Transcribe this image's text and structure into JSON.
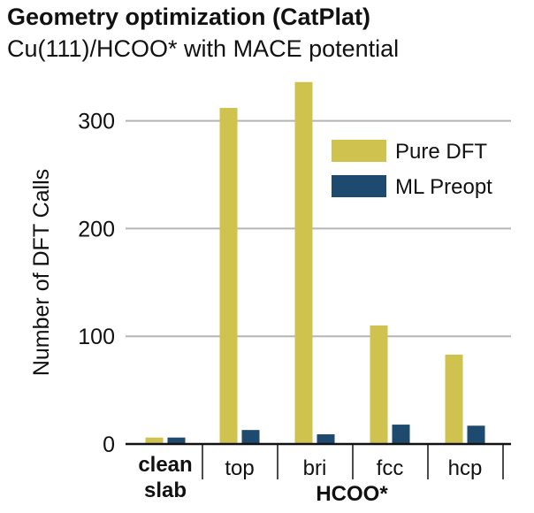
{
  "header": {
    "title": "Geometry optimization (CatPlat)",
    "subtitle": "Cu(111)/HCOO* with MACE potential"
  },
  "chart_data": {
    "type": "bar",
    "ylabel": "Number of DFT Calls",
    "ylim": [
      0,
      330
    ],
    "yticks": [
      0,
      100,
      200,
      300
    ],
    "grid": true,
    "legend_position": "top-right",
    "categories": [
      "clean slab",
      "top",
      "bri",
      "fcc",
      "hcp"
    ],
    "group_label": "HCOO*",
    "series": [
      {
        "name": "Pure DFT",
        "color": "#cfc24f",
        "values": [
          6,
          312,
          336,
          110,
          83
        ]
      },
      {
        "name": "ML Preopt",
        "color": "#1d4a6e",
        "values": [
          6,
          13,
          9,
          18,
          17
        ]
      }
    ]
  }
}
